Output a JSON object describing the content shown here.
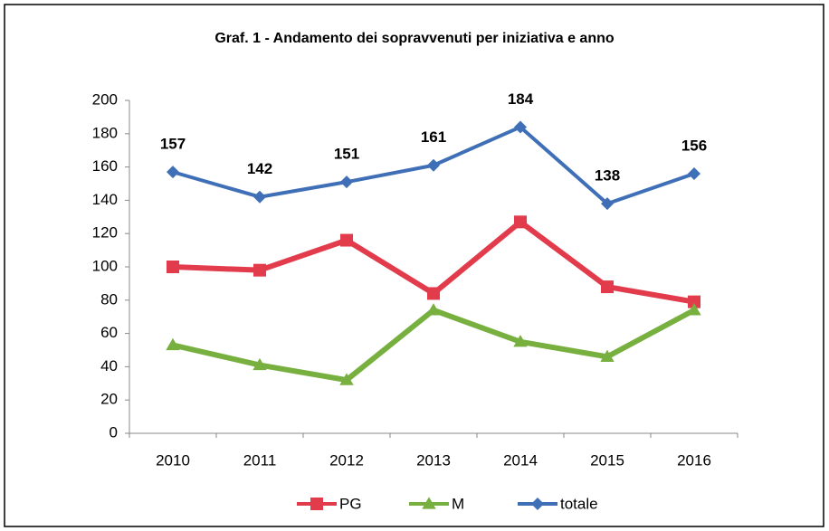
{
  "chart_data": {
    "type": "line",
    "title": "Graf. 1 - Andamento dei sopravvenuti per iniziativa  e anno",
    "categories": [
      "2010",
      "2011",
      "2012",
      "2013",
      "2014",
      "2015",
      "2016"
    ],
    "series": [
      {
        "name": "PG",
        "color": "#e23c4c",
        "marker": "square",
        "values": [
          100,
          98,
          116,
          84,
          127,
          88,
          79
        ]
      },
      {
        "name": "M",
        "color": "#78b040",
        "marker": "triangle",
        "values": [
          53,
          41,
          32,
          74,
          55,
          46,
          74
        ]
      },
      {
        "name": "totale",
        "color": "#3f6fb6",
        "marker": "diamond",
        "values": [
          157,
          142,
          151,
          161,
          184,
          138,
          156
        ],
        "data_labels": true
      }
    ],
    "ylim": [
      0,
      200
    ],
    "yticks": [
      0,
      20,
      40,
      60,
      80,
      100,
      120,
      140,
      160,
      180,
      200
    ],
    "grid": false,
    "legend": "bottom"
  }
}
